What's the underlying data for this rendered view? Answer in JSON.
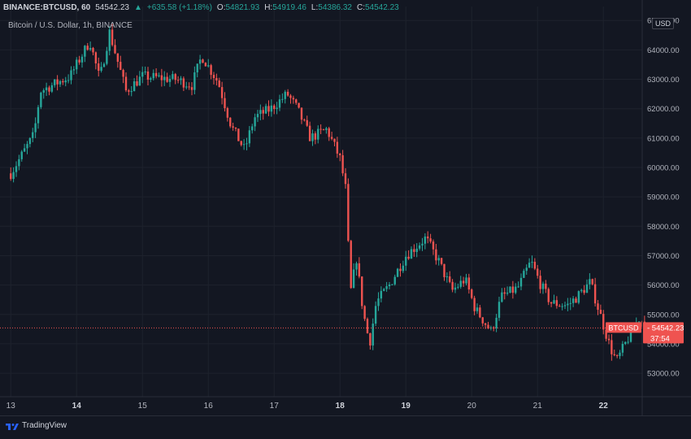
{
  "header": {
    "symbol": "BINANCE:BTCUSD, 60",
    "last": "54542.23",
    "change": "+635.58 (+1.18%)",
    "o_label": "O:",
    "o_value": "54821.93",
    "h_label": "H:",
    "h_value": "54919.46",
    "l_label": "L:",
    "l_value": "54386.32",
    "c_label": "C:",
    "c_value": "54542.23",
    "subtitle": "Bitcoin / U.S. Dollar, 1h, BINANCE"
  },
  "currency": "USD",
  "footer": {
    "brand": "TradingView"
  },
  "colors": {
    "up": "#26a69a",
    "down": "#ef5350",
    "bg": "#131722",
    "grid": "#1e222d",
    "text": "#b2b5be"
  },
  "chart_data": {
    "type": "candlestick",
    "title": "Bitcoin / U.S. Dollar, 1h, BINANCE",
    "x_ticks": [
      "13",
      "14",
      "15",
      "16",
      "17",
      "18",
      "19",
      "20",
      "21",
      "22"
    ],
    "x_bold": [
      "14",
      "18",
      "19",
      "22"
    ],
    "y_ticks": [
      53000,
      54000,
      55000,
      56000,
      57000,
      58000,
      59000,
      60000,
      61000,
      62000,
      63000,
      64000,
      65000
    ],
    "ylim": [
      52200,
      65200
    ],
    "price_label": {
      "name": "BTCUSD",
      "value": "54542.23",
      "countdown": "37:54"
    },
    "current_price": 54542.23,
    "series": [
      {
        "name": "BTCUSD",
        "close_path": [
          {
            "day": 13.0,
            "close": 59800
          },
          {
            "day": 13.35,
            "close": 61100
          },
          {
            "day": 13.45,
            "close": 62600
          },
          {
            "day": 13.9,
            "close": 63100
          },
          {
            "day": 14.2,
            "close": 64300
          },
          {
            "day": 14.35,
            "close": 63000
          },
          {
            "day": 14.5,
            "close": 64600
          },
          {
            "day": 14.75,
            "close": 62600
          },
          {
            "day": 15.0,
            "close": 63100
          },
          {
            "day": 15.5,
            "close": 63000
          },
          {
            "day": 15.75,
            "close": 62800
          },
          {
            "day": 15.9,
            "close": 63800
          },
          {
            "day": 16.15,
            "close": 62900
          },
          {
            "day": 16.35,
            "close": 61400
          },
          {
            "day": 16.55,
            "close": 60600
          },
          {
            "day": 16.7,
            "close": 61700
          },
          {
            "day": 16.95,
            "close": 62000
          },
          {
            "day": 17.2,
            "close": 62500
          },
          {
            "day": 17.35,
            "close": 62000
          },
          {
            "day": 17.55,
            "close": 61000
          },
          {
            "day": 17.8,
            "close": 61300
          },
          {
            "day": 18.0,
            "close": 60300
          },
          {
            "day": 18.1,
            "close": 59100
          },
          {
            "day": 18.15,
            "close": 55600
          },
          {
            "day": 18.25,
            "close": 56900
          },
          {
            "day": 18.35,
            "close": 55100
          },
          {
            "day": 18.45,
            "close": 54000
          },
          {
            "day": 18.55,
            "close": 55400
          },
          {
            "day": 18.75,
            "close": 56000
          },
          {
            "day": 19.0,
            "close": 57000
          },
          {
            "day": 19.3,
            "close": 57600
          },
          {
            "day": 19.5,
            "close": 56800
          },
          {
            "day": 19.7,
            "close": 55800
          },
          {
            "day": 19.9,
            "close": 56200
          },
          {
            "day": 20.05,
            "close": 55200
          },
          {
            "day": 20.3,
            "close": 54400
          },
          {
            "day": 20.45,
            "close": 55600
          },
          {
            "day": 20.7,
            "close": 55900
          },
          {
            "day": 20.9,
            "close": 56800
          },
          {
            "day": 21.05,
            "close": 56000
          },
          {
            "day": 21.2,
            "close": 55400
          },
          {
            "day": 21.45,
            "close": 55300
          },
          {
            "day": 21.6,
            "close": 55600
          },
          {
            "day": 21.8,
            "close": 56100
          },
          {
            "day": 21.95,
            "close": 55000
          },
          {
            "day": 22.1,
            "close": 53900
          },
          {
            "day": 22.2,
            "close": 53400
          },
          {
            "day": 22.4,
            "close": 54300
          },
          {
            "day": 22.55,
            "close": 54900
          },
          {
            "day": 22.65,
            "close": 54542
          }
        ]
      }
    ]
  }
}
